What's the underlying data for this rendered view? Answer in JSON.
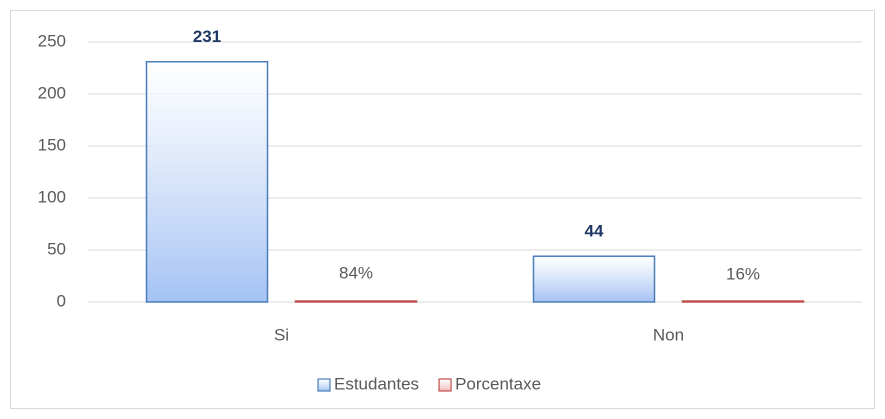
{
  "chart_data": {
    "type": "bar",
    "categories": [
      "Si",
      "Non"
    ],
    "series": [
      {
        "name": "Estudantes",
        "color": "#a4c2f4",
        "edgecolor": "#4a7ebb",
        "values": [
          231,
          44
        ]
      },
      {
        "name": "Porcentaxe",
        "color": "#f2b8b6",
        "edgecolor": "#c0504d",
        "values": [
          0.84,
          0.16
        ],
        "value_labels": [
          "84%",
          "16%"
        ]
      }
    ],
    "ylim": [
      0,
      250
    ],
    "yticks": [
      0,
      50,
      100,
      150,
      200,
      250
    ],
    "grid": true,
    "legend": "bottom"
  }
}
